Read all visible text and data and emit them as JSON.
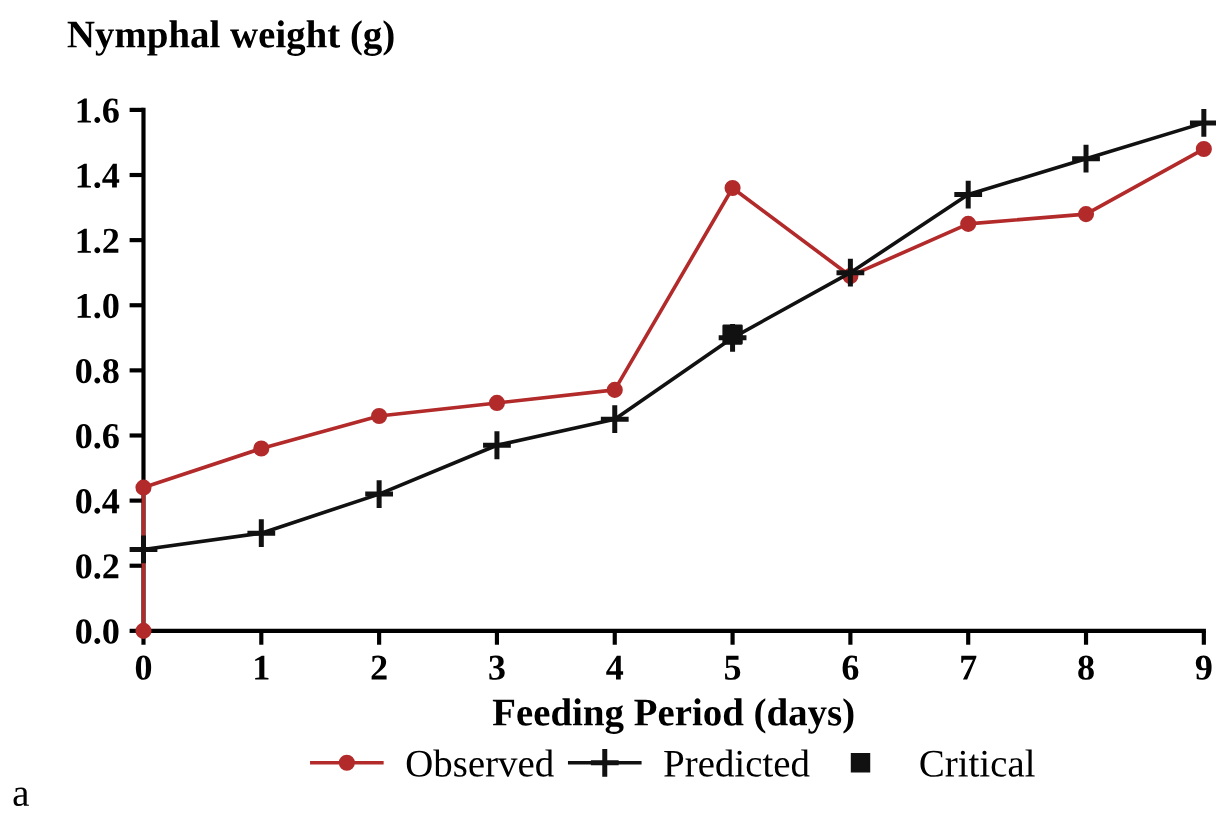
{
  "chart_data": {
    "type": "line",
    "title": "Nymphal weight (g)",
    "xlabel": "Feeding Period (days)",
    "xlim": [
      0,
      9
    ],
    "xticks": [
      0,
      1,
      2,
      3,
      4,
      5,
      6,
      7,
      8,
      9
    ],
    "ylim": [
      0,
      1.6
    ],
    "yticks": [
      {
        "value": 0,
        "label": "0.0"
      },
      {
        "value": 0.2,
        "label": "0.2"
      },
      {
        "value": 0.4,
        "label": "0.4"
      },
      {
        "value": 0.6,
        "label": "0.6"
      },
      {
        "value": 0.8,
        "label": "0.8"
      },
      {
        "value": 1.0,
        "label": "1.0"
      },
      {
        "value": 1.2,
        "label": "1.2"
      },
      {
        "value": 1.4,
        "label": "1.4"
      },
      {
        "value": 1.6,
        "label": "1.6"
      }
    ],
    "series": [
      {
        "name": "Observed",
        "marker": "circle",
        "color": "#b22a2a",
        "x": [
          0,
          0,
          1,
          2,
          3,
          4,
          5,
          6,
          7,
          8,
          9
        ],
        "values": [
          0,
          0.44,
          0.56,
          0.66,
          0.7,
          0.74,
          1.36,
          1.09,
          1.25,
          1.28,
          1.48
        ]
      },
      {
        "name": "Predicted",
        "marker": "cross",
        "color": "#111111",
        "x": [
          0,
          1,
          2,
          3,
          4,
          5,
          6,
          7,
          8,
          9
        ],
        "values": [
          0.25,
          0.3,
          0.42,
          0.57,
          0.65,
          0.9,
          1.1,
          1.34,
          1.45,
          1.56
        ]
      },
      {
        "name": "Critical",
        "type": "scatter",
        "marker": "square",
        "color": "#111111",
        "x": [
          5
        ],
        "values": [
          0.91
        ]
      }
    ],
    "legend": "bottom",
    "grid": false,
    "annotations": [
      "a"
    ]
  }
}
